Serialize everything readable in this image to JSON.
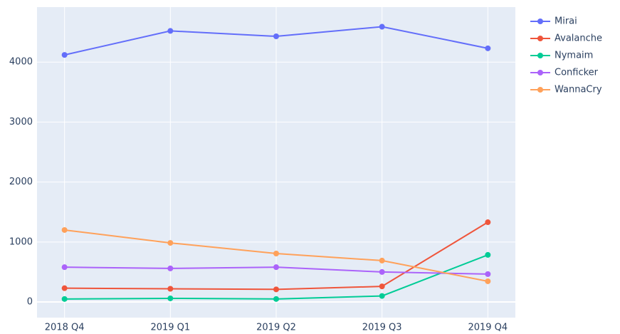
{
  "chart_data": {
    "type": "line",
    "categories": [
      "2018 Q4",
      "2019 Q1",
      "2019 Q2",
      "2019 Q3",
      "2019 Q4"
    ],
    "series": [
      {
        "name": "Mirai",
        "color": "#636efa",
        "values": [
          4120,
          4520,
          4430,
          4590,
          4230
        ]
      },
      {
        "name": "Avalanche",
        "color": "#EF553B",
        "values": [
          230,
          220,
          210,
          260,
          1330
        ]
      },
      {
        "name": "Nymaim",
        "color": "#00cc96",
        "values": [
          50,
          60,
          50,
          100,
          785
        ]
      },
      {
        "name": "Conficker",
        "color": "#ab63fa",
        "values": [
          580,
          560,
          580,
          500,
          465
        ]
      },
      {
        "name": "WannaCry",
        "color": "#FFA15A",
        "values": [
          1200,
          985,
          808,
          690,
          345
        ]
      }
    ],
    "ylim": [
      -261,
      4917
    ],
    "yticks": [
      0,
      1000,
      2000,
      3000,
      4000
    ],
    "grid": true,
    "legend": "right"
  }
}
